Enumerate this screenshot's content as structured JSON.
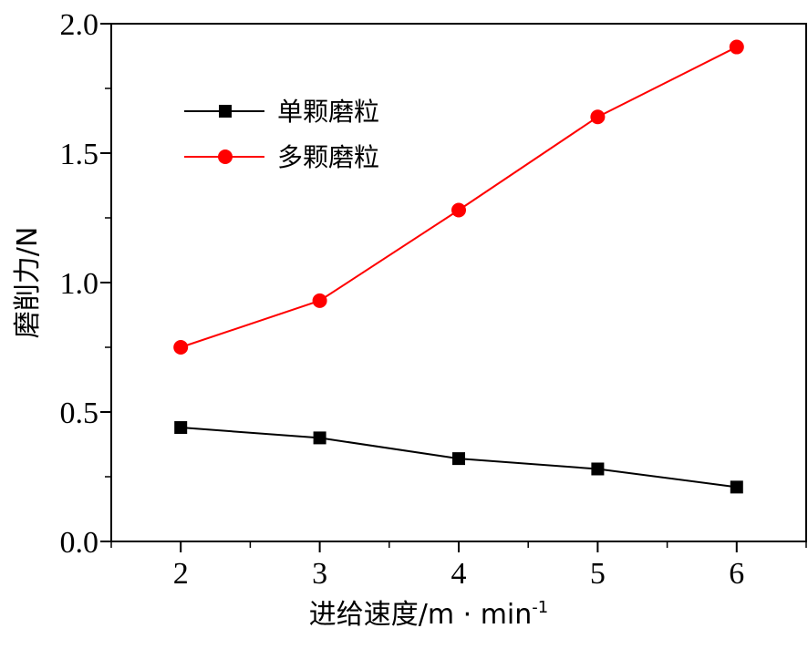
{
  "chart_data": {
    "type": "line",
    "x": [
      2,
      3,
      4,
      5,
      6
    ],
    "series": [
      {
        "name": "单颗磨粒",
        "values": [
          0.44,
          0.4,
          0.32,
          0.28,
          0.21
        ],
        "color": "#000000",
        "marker": "square"
      },
      {
        "name": "多颗磨粒",
        "values": [
          0.75,
          0.93,
          1.28,
          1.64,
          1.91
        ],
        "color": "#ff0000",
        "marker": "circle"
      }
    ],
    "xlabel": "进给速度/m · min",
    "xlabel_sup": "-1",
    "ylabel": "磨削力/N",
    "xlim": [
      1.5,
      6.5
    ],
    "ylim": [
      0.0,
      2.0
    ],
    "xticks": [
      "2",
      "3",
      "4",
      "5",
      "6"
    ],
    "yticks": [
      "0.0",
      "0.5",
      "1.0",
      "1.5",
      "2.0"
    ],
    "grid": false,
    "legend_position": "top-left"
  }
}
